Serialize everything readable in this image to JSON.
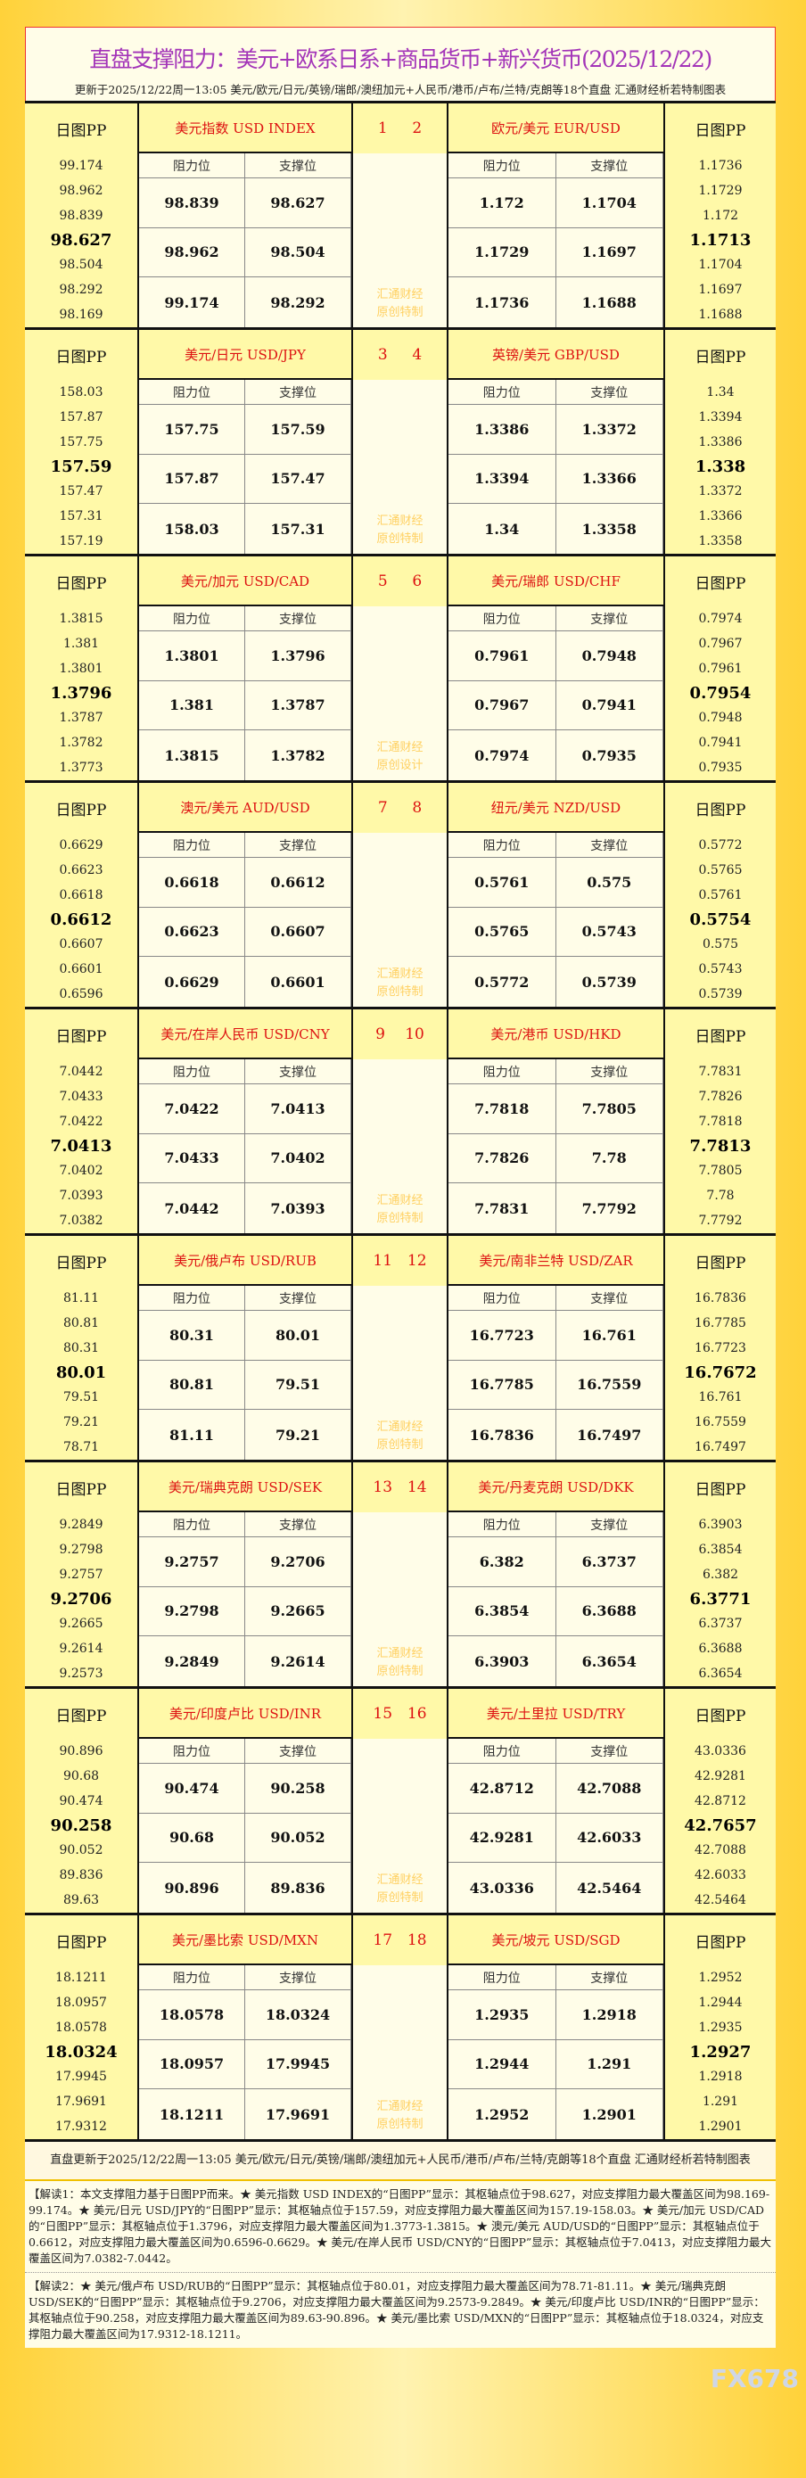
{
  "title": "直盘支撑阻力：美元+欧系日系+商品货币+新兴货币(2025/12/22)",
  "subtitle": "更新于2025/12/22周一13:05 美元/欧元/日元/英镑/瑞郎/澳纽加元+人民币/港币/卢布/兰特/克朗等18个直盘 汇通财经析若特制图表",
  "labels": {
    "pp": "日图PP",
    "resistance": "阻力位",
    "support": "支撑位"
  },
  "blocks": [
    {
      "nums": [
        "1",
        "2"
      ],
      "mark": [
        "汇通财经",
        "原创特制"
      ],
      "left": {
        "name": "美元指数 USD INDEX",
        "pp": [
          "99.174",
          "98.962",
          "98.839",
          "98.627",
          "98.504",
          "98.292",
          "98.169"
        ],
        "r": [
          "98.839",
          "98.962",
          "99.174"
        ],
        "s": [
          "98.627",
          "98.504",
          "98.292"
        ]
      },
      "right": {
        "name": "欧元/美元 EUR/USD",
        "pp": [
          "1.1736",
          "1.1729",
          "1.172",
          "1.1713",
          "1.1704",
          "1.1697",
          "1.1688"
        ],
        "r": [
          "1.172",
          "1.1729",
          "1.1736"
        ],
        "s": [
          "1.1704",
          "1.1697",
          "1.1688"
        ]
      }
    },
    {
      "nums": [
        "3",
        "4"
      ],
      "mark": [
        "汇通财经",
        "原创特制"
      ],
      "left": {
        "name": "美元/日元 USD/JPY",
        "pp": [
          "158.03",
          "157.87",
          "157.75",
          "157.59",
          "157.47",
          "157.31",
          "157.19"
        ],
        "r": [
          "157.75",
          "157.87",
          "158.03"
        ],
        "s": [
          "157.59",
          "157.47",
          "157.31"
        ]
      },
      "right": {
        "name": "英镑/美元 GBP/USD",
        "pp": [
          "1.34",
          "1.3394",
          "1.3386",
          "1.338",
          "1.3372",
          "1.3366",
          "1.3358"
        ],
        "r": [
          "1.3386",
          "1.3394",
          "1.34"
        ],
        "s": [
          "1.3372",
          "1.3366",
          "1.3358"
        ]
      }
    },
    {
      "nums": [
        "5",
        "6"
      ],
      "mark": [
        "汇通财经",
        "原创设计"
      ],
      "left": {
        "name": "美元/加元 USD/CAD",
        "pp": [
          "1.3815",
          "1.381",
          "1.3801",
          "1.3796",
          "1.3787",
          "1.3782",
          "1.3773"
        ],
        "r": [
          "1.3801",
          "1.381",
          "1.3815"
        ],
        "s": [
          "1.3796",
          "1.3787",
          "1.3782"
        ]
      },
      "right": {
        "name": "美元/瑞郎 USD/CHF",
        "pp": [
          "0.7974",
          "0.7967",
          "0.7961",
          "0.7954",
          "0.7948",
          "0.7941",
          "0.7935"
        ],
        "r": [
          "0.7961",
          "0.7967",
          "0.7974"
        ],
        "s": [
          "0.7948",
          "0.7941",
          "0.7935"
        ]
      }
    },
    {
      "nums": [
        "7",
        "8"
      ],
      "mark": [
        "汇通财经",
        "原创特制"
      ],
      "left": {
        "name": "澳元/美元 AUD/USD",
        "pp": [
          "0.6629",
          "0.6623",
          "0.6618",
          "0.6612",
          "0.6607",
          "0.6601",
          "0.6596"
        ],
        "r": [
          "0.6618",
          "0.6623",
          "0.6629"
        ],
        "s": [
          "0.6612",
          "0.6607",
          "0.6601"
        ]
      },
      "right": {
        "name": "纽元/美元 NZD/USD",
        "pp": [
          "0.5772",
          "0.5765",
          "0.5761",
          "0.5754",
          "0.575",
          "0.5743",
          "0.5739"
        ],
        "r": [
          "0.5761",
          "0.5765",
          "0.5772"
        ],
        "s": [
          "0.575",
          "0.5743",
          "0.5739"
        ]
      }
    },
    {
      "nums": [
        "9",
        "10"
      ],
      "mark": [
        "汇通财经",
        "原创特制"
      ],
      "left": {
        "name": "美元/在岸人民币 USD/CNY",
        "pp": [
          "7.0442",
          "7.0433",
          "7.0422",
          "7.0413",
          "7.0402",
          "7.0393",
          "7.0382"
        ],
        "r": [
          "7.0422",
          "7.0433",
          "7.0442"
        ],
        "s": [
          "7.0413",
          "7.0402",
          "7.0393"
        ]
      },
      "right": {
        "name": "美元/港币 USD/HKD",
        "pp": [
          "7.7831",
          "7.7826",
          "7.7818",
          "7.7813",
          "7.7805",
          "7.78",
          "7.7792"
        ],
        "r": [
          "7.7818",
          "7.7826",
          "7.7831"
        ],
        "s": [
          "7.7805",
          "7.78",
          "7.7792"
        ]
      }
    },
    {
      "nums": [
        "11",
        "12"
      ],
      "mark": [
        "汇通财经",
        "原创特制"
      ],
      "left": {
        "name": "美元/俄卢布 USD/RUB",
        "pp": [
          "81.11",
          "80.81",
          "80.31",
          "80.01",
          "79.51",
          "79.21",
          "78.71"
        ],
        "r": [
          "80.31",
          "80.81",
          "81.11"
        ],
        "s": [
          "80.01",
          "79.51",
          "79.21"
        ]
      },
      "right": {
        "name": "美元/南非兰特 USD/ZAR",
        "pp": [
          "16.7836",
          "16.7785",
          "16.7723",
          "16.7672",
          "16.761",
          "16.7559",
          "16.7497"
        ],
        "r": [
          "16.7723",
          "16.7785",
          "16.7836"
        ],
        "s": [
          "16.761",
          "16.7559",
          "16.7497"
        ]
      }
    },
    {
      "nums": [
        "13",
        "14"
      ],
      "mark": [
        "汇通财经",
        "原创特制"
      ],
      "left": {
        "name": "美元/瑞典克朗 USD/SEK",
        "pp": [
          "9.2849",
          "9.2798",
          "9.2757",
          "9.2706",
          "9.2665",
          "9.2614",
          "9.2573"
        ],
        "r": [
          "9.2757",
          "9.2798",
          "9.2849"
        ],
        "s": [
          "9.2706",
          "9.2665",
          "9.2614"
        ]
      },
      "right": {
        "name": "美元/丹麦克朗 USD/DKK",
        "pp": [
          "6.3903",
          "6.3854",
          "6.382",
          "6.3771",
          "6.3737",
          "6.3688",
          "6.3654"
        ],
        "r": [
          "6.382",
          "6.3854",
          "6.3903"
        ],
        "s": [
          "6.3737",
          "6.3688",
          "6.3654"
        ]
      }
    },
    {
      "nums": [
        "15",
        "16"
      ],
      "mark": [
        "汇通财经",
        "原创特制"
      ],
      "left": {
        "name": "美元/印度卢比 USD/INR",
        "pp": [
          "90.896",
          "90.68",
          "90.474",
          "90.258",
          "90.052",
          "89.836",
          "89.63"
        ],
        "r": [
          "90.474",
          "90.68",
          "90.896"
        ],
        "s": [
          "90.258",
          "90.052",
          "89.836"
        ]
      },
      "right": {
        "name": "美元/土里拉 USD/TRY",
        "pp": [
          "43.0336",
          "42.9281",
          "42.8712",
          "42.7657",
          "42.7088",
          "42.6033",
          "42.5464"
        ],
        "r": [
          "42.8712",
          "42.9281",
          "43.0336"
        ],
        "s": [
          "42.7088",
          "42.6033",
          "42.5464"
        ]
      }
    },
    {
      "nums": [
        "17",
        "18"
      ],
      "mark": [
        "汇通财经",
        "原创特制"
      ],
      "left": {
        "name": "美元/墨比索 USD/MXN",
        "pp": [
          "18.1211",
          "18.0957",
          "18.0578",
          "18.0324",
          "17.9945",
          "17.9691",
          "17.9312"
        ],
        "r": [
          "18.0578",
          "18.0957",
          "18.1211"
        ],
        "s": [
          "18.0324",
          "17.9945",
          "17.9691"
        ]
      },
      "right": {
        "name": "美元/坡元 USD/SGD",
        "pp": [
          "1.2952",
          "1.2944",
          "1.2935",
          "1.2927",
          "1.2918",
          "1.291",
          "1.2901"
        ],
        "r": [
          "1.2935",
          "1.2944",
          "1.2952"
        ],
        "s": [
          "1.2918",
          "1.291",
          "1.2901"
        ]
      }
    }
  ],
  "footer": "直盘更新于2025/12/22周一13:05 美元/欧元/日元/英镑/瑞郎/澳纽加元+人民币/港币/卢布/兰特/克朗等18个直盘 汇通财经析若特制图表",
  "notes": [
    "【解读1：本文支撑阻力基于日图PP而来。★ 美元指数 USD INDEX的“日图PP”显示：其枢轴点位于98.627，对应支撑阻力最大覆盖区间为98.169-99.174。★ 美元/日元 USD/JPY的“日图PP”显示：其枢轴点位于157.59，对应支撑阻力最大覆盖区间为157.19-158.03。★ 美元/加元 USD/CAD的“日图PP”显示：其枢轴点位于1.3796，对应支撑阻力最大覆盖区间为1.3773-1.3815。★ 澳元/美元 AUD/USD的“日图PP”显示：其枢轴点位于0.6612，对应支撑阻力最大覆盖区间为0.6596-0.6629。★ 美元/在岸人民币 USD/CNY的“日图PP”显示：其枢轴点位于7.0413，对应支撑阻力最大覆盖区间为7.0382-7.0442。",
    "【解读2：★ 美元/俄卢布 USD/RUB的“日图PP”显示：其枢轴点位于80.01，对应支撑阻力最大覆盖区间为78.71-81.11。★ 美元/瑞典克朗 USD/SEK的“日图PP”显示：其枢轴点位于9.2706，对应支撑阻力最大覆盖区间为9.2573-9.2849。★ 美元/印度卢比 USD/INR的“日图PP”显示：其枢轴点位于90.258，对应支撑阻力最大覆盖区间为89.63-90.896。★ 美元/墨比索 USD/MXN的“日图PP”显示：其枢轴点位于18.0324，对应支撑阻力最大覆盖区间为17.9312-18.1211。"
  ],
  "watermark": "FX678"
}
